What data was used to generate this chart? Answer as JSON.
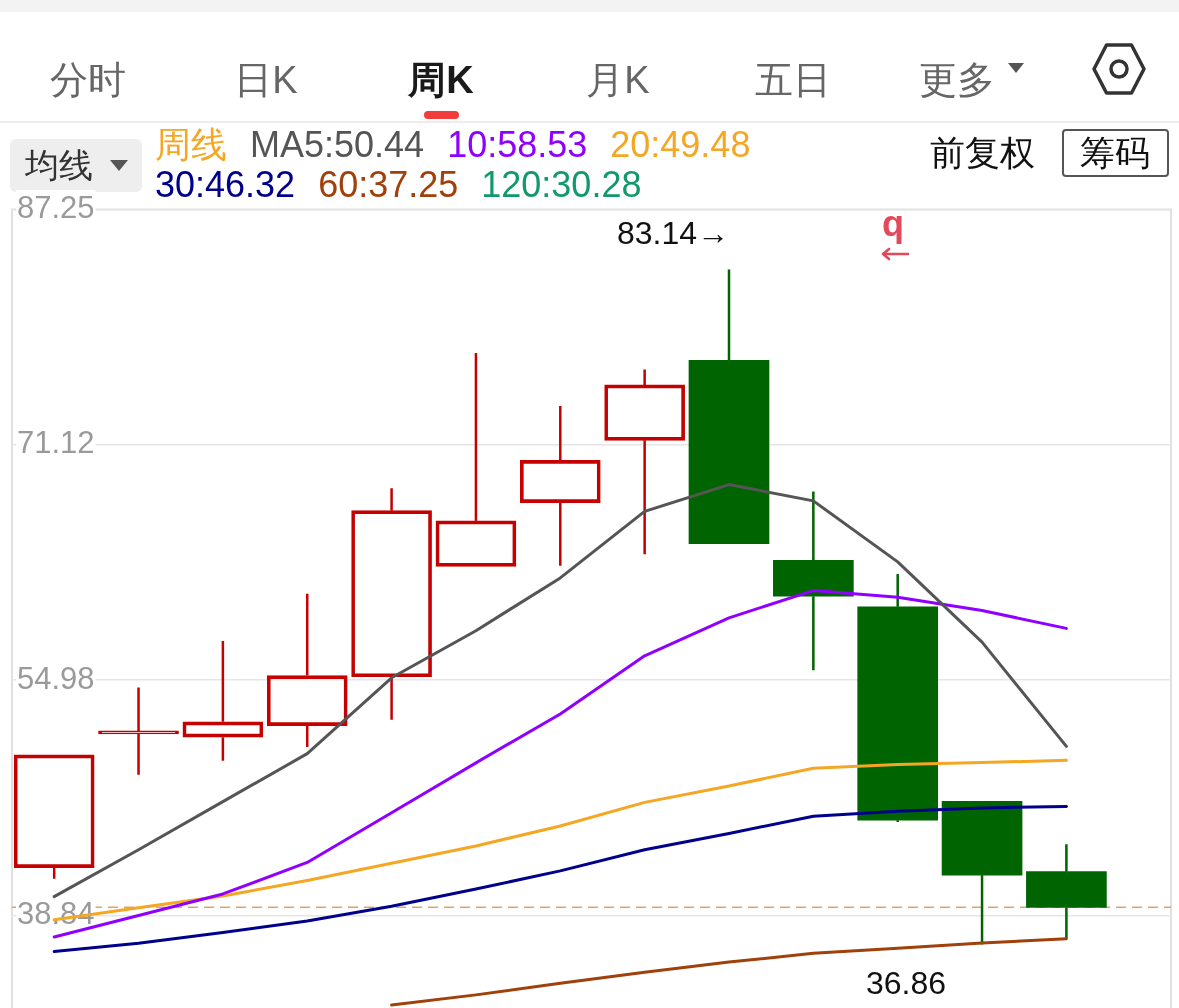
{
  "chart_data": {
    "type": "candlestick",
    "categories": [
      null,
      null,
      null,
      null,
      null,
      null,
      null,
      null,
      null,
      null,
      null,
      null,
      null
    ],
    "ohlc": [
      [
        42.12,
        49.86,
        41.36,
        49.86
      ],
      [
        51.3,
        54.47,
        48.49,
        51.5
      ],
      [
        51.07,
        57.67,
        49.46,
        52.12
      ],
      [
        51.86,
        60.9,
        50.39,
        55.29
      ],
      [
        55.21,
        68.13,
        52.26,
        66.6
      ],
      [
        62.78,
        77.41,
        62.78,
        65.9
      ],
      [
        67.15,
        73.78,
        62.83,
        70.05
      ],
      [
        71.42,
        76.28,
        63.62,
        75.22
      ],
      [
        76.91,
        83.14,
        64.34,
        64.34
      ],
      [
        63.2,
        67.92,
        55.66,
        60.73
      ],
      [
        60.01,
        62.25,
        45.26,
        45.38
      ],
      [
        46.67,
        46.67,
        36.86,
        41.61
      ],
      [
        41.85,
        43.72,
        37.28,
        39.4
      ]
    ],
    "colors": [
      "#c40000",
      "#c40000",
      "#c40000",
      "#c40000",
      "#c40000",
      "#c40000",
      "#c40000",
      "#c40000",
      "#006400",
      "#006400",
      "#006400",
      "#006400",
      "#006400"
    ],
    "series": [
      {
        "name": "MA5:50.44",
        "type": "line",
        "color": "#555555",
        "values": [
          40.14,
          43.35,
          46.65,
          49.94,
          55.14,
          58.37,
          61.99,
          66.55,
          68.39,
          67.27,
          63.09,
          57.59,
          50.44
        ]
      },
      {
        "name": "10:58.53",
        "type": "line",
        "color": "#9000ff",
        "values": [
          37.37,
          38.84,
          40.32,
          42.48,
          45.89,
          49.31,
          52.66,
          56.65,
          59.25,
          61.12,
          60.67,
          59.75,
          58.53
        ]
      },
      {
        "name": "20:49.48",
        "type": "line",
        "color": "#f5a623",
        "values": [
          38.55,
          39.38,
          40.18,
          41.24,
          42.42,
          43.61,
          44.98,
          46.6,
          47.72,
          48.94,
          49.2,
          49.33,
          49.48
        ]
      },
      {
        "name": "30:46.32",
        "type": "line",
        "color": "#00008b",
        "values": [
          36.37,
          36.94,
          37.68,
          38.47,
          39.48,
          40.66,
          41.9,
          43.35,
          44.47,
          45.65,
          45.99,
          46.22,
          46.32
        ]
      },
      {
        "name": "60:37.25",
        "type": "line",
        "color": "#a0400a",
        "values": [
          null,
          null,
          null,
          null,
          32.7,
          33.4,
          34.2,
          34.95,
          35.65,
          36.25,
          36.6,
          36.95,
          37.25
        ]
      },
      {
        "name": "120:30.28",
        "type": "line",
        "color": "#12996b",
        "values": [
          null,
          null,
          null,
          null,
          null,
          null,
          null,
          null,
          null,
          null,
          null,
          null,
          null
        ]
      }
    ],
    "ylim": [
      32.5,
      87.25
    ],
    "yticks": [
      87.25,
      71.12,
      54.98,
      38.84
    ],
    "tick_labels": "y",
    "grid": "y",
    "legend": "top left",
    "legend_title": "周线",
    "marker": "none",
    "ref_lines": [
      {
        "axis": "y",
        "value": 39.4,
        "color": "#d9a56b",
        "line_style": "dashed"
      }
    ],
    "annotations": [
      "分时",
      "日K",
      "周K",
      "月K",
      "五日",
      "更多",
      "均线",
      "前复权",
      "筹码",
      "q",
      "83.14→",
      "36.86"
    ]
  }
}
